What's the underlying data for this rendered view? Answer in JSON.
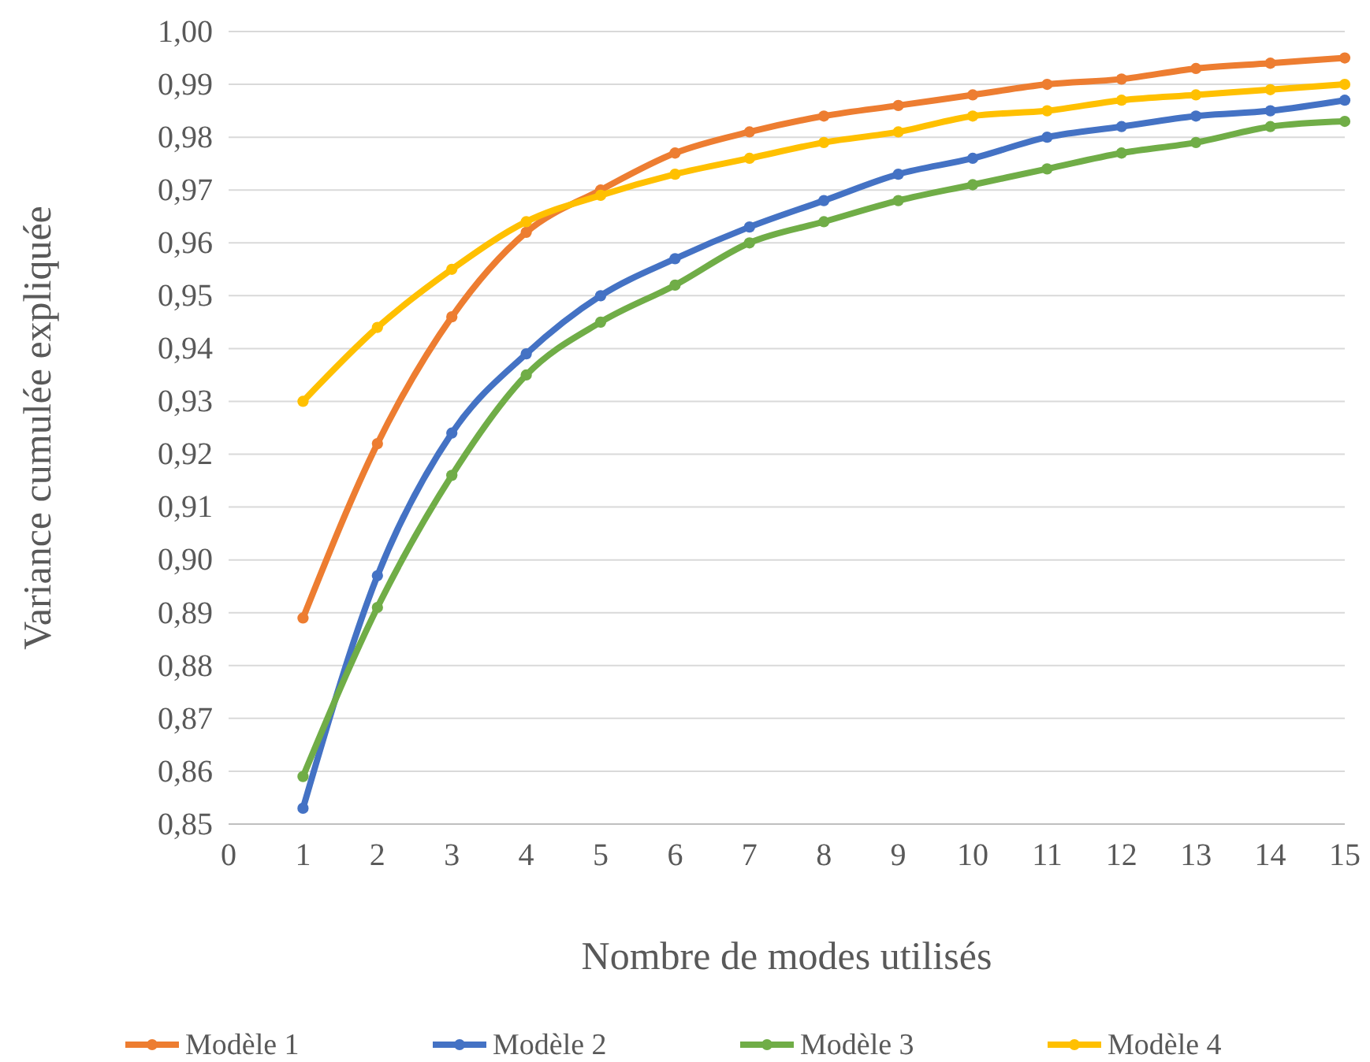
{
  "chart_data": {
    "type": "line",
    "xlabel": "Nombre de modes utilisés",
    "ylabel": "Variance cumulée expliquée",
    "x": [
      1,
      2,
      3,
      4,
      5,
      6,
      7,
      8,
      9,
      10,
      11,
      12,
      13,
      14,
      15
    ],
    "series": [
      {
        "name": "Modèle 1",
        "color": "#ed7d31",
        "values": [
          0.889,
          0.922,
          0.946,
          0.962,
          0.97,
          0.977,
          0.981,
          0.984,
          0.986,
          0.988,
          0.99,
          0.991,
          0.993,
          0.994,
          0.995
        ]
      },
      {
        "name": "Modèle 2",
        "color": "#4472c4",
        "values": [
          0.853,
          0.897,
          0.924,
          0.939,
          0.95,
          0.957,
          0.963,
          0.968,
          0.973,
          0.976,
          0.98,
          0.982,
          0.984,
          0.985,
          0.987
        ]
      },
      {
        "name": "Modèle 3",
        "color": "#70ad47",
        "values": [
          0.859,
          0.891,
          0.916,
          0.935,
          0.945,
          0.952,
          0.96,
          0.964,
          0.968,
          0.971,
          0.974,
          0.977,
          0.979,
          0.982,
          0.983
        ]
      },
      {
        "name": "Modèle 4",
        "color": "#ffc000",
        "values": [
          0.93,
          0.944,
          0.955,
          0.964,
          0.969,
          0.973,
          0.976,
          0.979,
          0.981,
          0.984,
          0.985,
          0.987,
          0.988,
          0.989,
          0.99
        ]
      }
    ],
    "xlim": [
      0,
      15
    ],
    "xticks": [
      0,
      1,
      2,
      3,
      4,
      5,
      6,
      7,
      8,
      9,
      10,
      11,
      12,
      13,
      14,
      15
    ],
    "ylim": [
      0.85,
      1.0
    ],
    "yticks": [
      {
        "value": 0.85,
        "label": "0,85"
      },
      {
        "value": 0.86,
        "label": "0,86"
      },
      {
        "value": 0.87,
        "label": "0,87"
      },
      {
        "value": 0.88,
        "label": "0,88"
      },
      {
        "value": 0.89,
        "label": "0,89"
      },
      {
        "value": 0.9,
        "label": "0,90"
      },
      {
        "value": 0.91,
        "label": "0,91"
      },
      {
        "value": 0.92,
        "label": "0,92"
      },
      {
        "value": 0.93,
        "label": "0,93"
      },
      {
        "value": 0.94,
        "label": "0,94"
      },
      {
        "value": 0.95,
        "label": "0,95"
      },
      {
        "value": 0.96,
        "label": "0,96"
      },
      {
        "value": 0.97,
        "label": "0,97"
      },
      {
        "value": 0.98,
        "label": "0,98"
      },
      {
        "value": 0.99,
        "label": "0,99"
      },
      {
        "value": 1.0,
        "label": "1,00"
      }
    ],
    "grid": "y",
    "legend": "bottom",
    "marker": "circle",
    "line_style": "solid"
  }
}
